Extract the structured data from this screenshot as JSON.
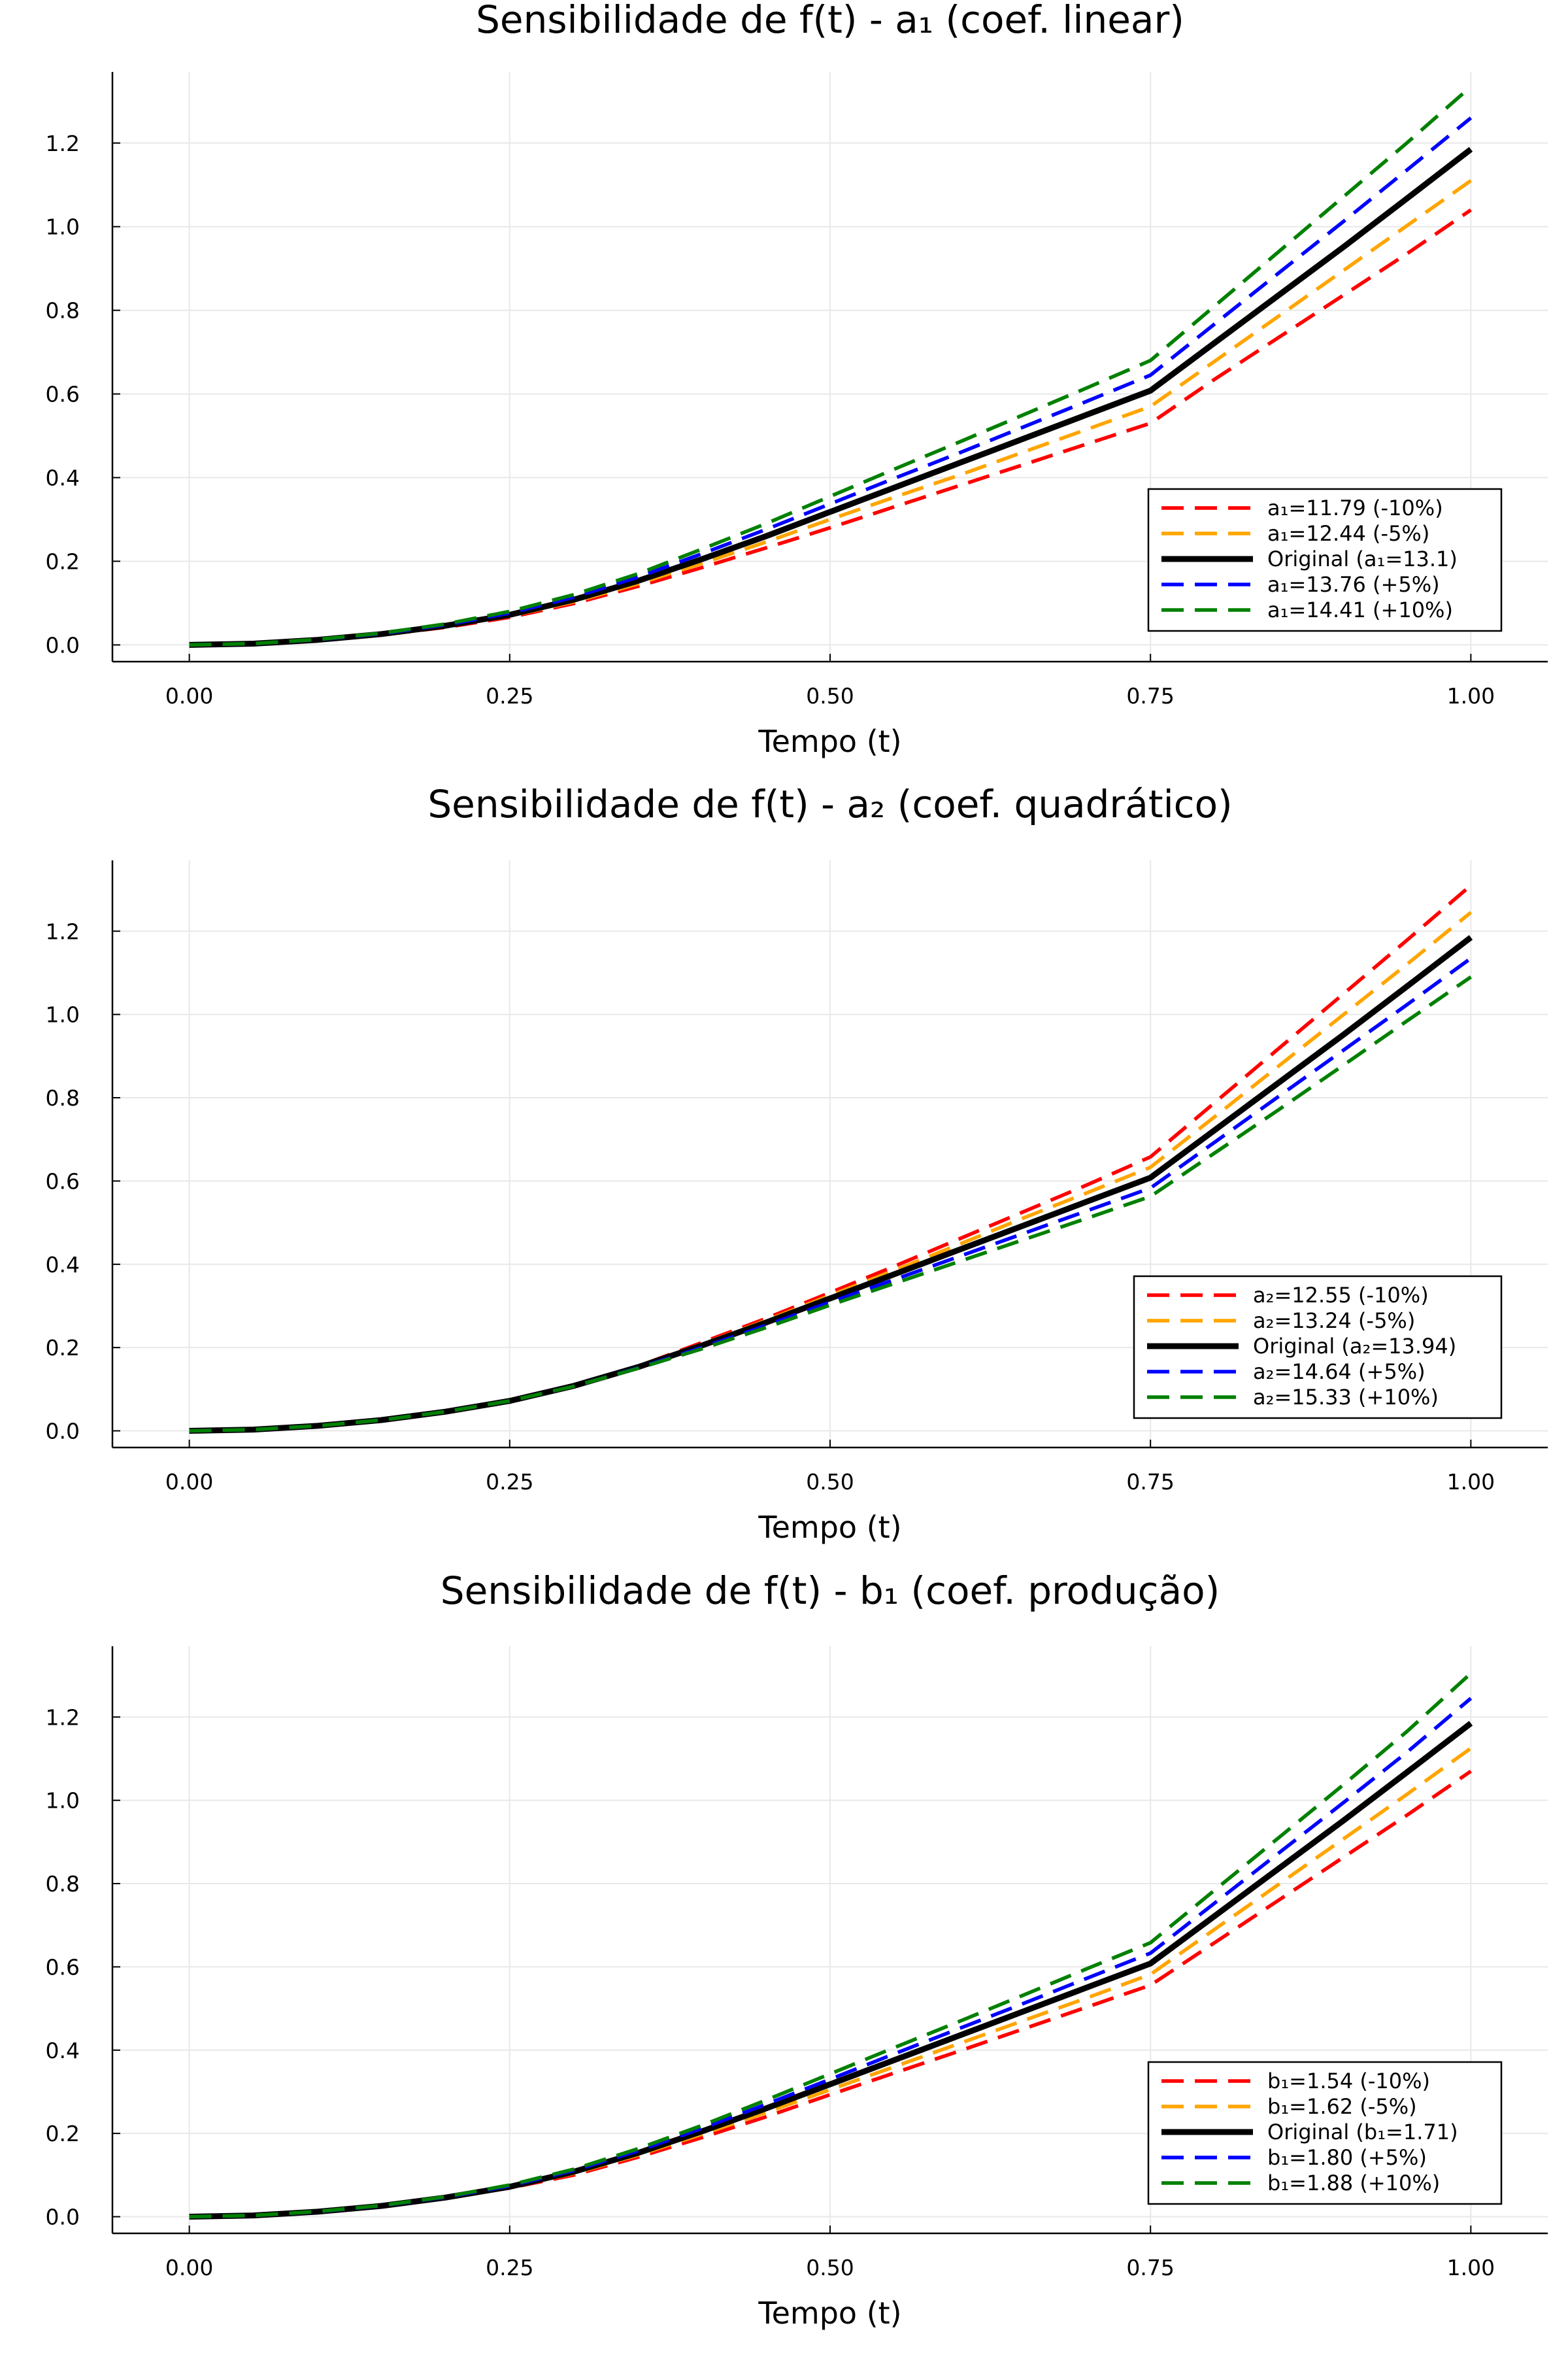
{
  "chart_data": [
    {
      "type": "line",
      "title": "Sensibilidade de f(t) - a₁ (coef. linear)",
      "xlabel": "Tempo (t)",
      "ylabel": "",
      "xlim": [
        -0.06,
        1.06
      ],
      "ylim": [
        -0.04,
        1.37
      ],
      "xticks": [
        "0.00",
        "0.25",
        "0.50",
        "0.75",
        "1.00"
      ],
      "yticks": [
        "0.0",
        "0.2",
        "0.4",
        "0.6",
        "0.8",
        "1.0",
        "1.2"
      ],
      "grid": true,
      "legend_position": "bottom-right",
      "x": [
        0.0,
        0.05,
        0.1,
        0.15,
        0.2,
        0.25,
        0.3,
        0.35,
        0.4,
        0.45,
        0.5,
        0.55,
        0.6,
        0.65,
        0.7,
        0.75,
        0.8,
        0.85,
        0.9,
        0.95,
        1.0
      ],
      "series": [
        {
          "name": "a₁=11.79 (-10%)",
          "color": "#ff0000",
          "dashed": true,
          "values": [
            0.0,
            0.0028,
            0.011,
            0.024,
            0.042,
            0.066,
            0.099,
            0.14,
            0.185,
            0.232,
            0.28,
            0.33,
            0.38,
            0.43,
            0.48,
            0.53,
            0.635,
            0.735,
            0.835,
            0.935,
            1.04
          ]
        },
        {
          "name": "a₁=12.44 (-5%)",
          "color": "#ffa500",
          "dashed": true,
          "values": [
            0.0,
            0.0029,
            0.0115,
            0.025,
            0.044,
            0.069,
            0.103,
            0.146,
            0.195,
            0.246,
            0.3,
            0.353,
            0.405,
            0.46,
            0.515,
            0.57,
            0.678,
            0.786,
            0.894,
            1.002,
            1.11
          ]
        },
        {
          "name": "Original (a₁=13.1)",
          "color": "#000000",
          "dashed": false,
          "values": [
            0.0,
            0.003,
            0.012,
            0.026,
            0.046,
            0.072,
            0.108,
            0.153,
            0.205,
            0.26,
            0.318,
            0.376,
            0.434,
            0.492,
            0.55,
            0.608,
            0.722,
            0.836,
            0.95,
            1.067,
            1.185
          ]
        },
        {
          "name": "a₁=13.76 (+5%)",
          "color": "#0000ff",
          "dashed": true,
          "values": [
            0.0,
            0.0031,
            0.0125,
            0.027,
            0.048,
            0.076,
            0.114,
            0.162,
            0.218,
            0.276,
            0.337,
            0.398,
            0.458,
            0.52,
            0.582,
            0.645,
            0.767,
            0.889,
            1.011,
            1.135,
            1.26
          ]
        },
        {
          "name": "a₁=14.41 (+10%)",
          "color": "#008000",
          "dashed": true,
          "values": [
            0.0,
            0.0032,
            0.013,
            0.028,
            0.05,
            0.08,
            0.12,
            0.17,
            0.229,
            0.29,
            0.355,
            0.42,
            0.484,
            0.549,
            0.614,
            0.68,
            0.81,
            0.94,
            1.07,
            1.2,
            1.335
          ]
        }
      ]
    },
    {
      "type": "line",
      "title": "Sensibilidade de f(t) - a₂ (coef. quadrático)",
      "xlabel": "Tempo (t)",
      "ylabel": "",
      "xlim": [
        -0.06,
        1.06
      ],
      "ylim": [
        -0.04,
        1.37
      ],
      "xticks": [
        "0.00",
        "0.25",
        "0.50",
        "0.75",
        "1.00"
      ],
      "yticks": [
        "0.0",
        "0.2",
        "0.4",
        "0.6",
        "0.8",
        "1.0",
        "1.2"
      ],
      "grid": true,
      "legend_position": "bottom-right",
      "x": [
        0.0,
        0.05,
        0.1,
        0.15,
        0.2,
        0.25,
        0.3,
        0.35,
        0.4,
        0.45,
        0.5,
        0.55,
        0.6,
        0.65,
        0.7,
        0.75,
        0.8,
        0.85,
        0.9,
        0.95,
        1.0
      ],
      "series": [
        {
          "name": "a₂=12.55 (-10%)",
          "color": "#ff0000",
          "dashed": true,
          "values": [
            0.0,
            0.003,
            0.012,
            0.026,
            0.046,
            0.072,
            0.108,
            0.155,
            0.212,
            0.27,
            0.332,
            0.395,
            0.46,
            0.525,
            0.59,
            0.658,
            0.788,
            0.918,
            1.048,
            1.178,
            1.31
          ]
        },
        {
          "name": "a₂=13.24 (-5%)",
          "color": "#ffa500",
          "dashed": true,
          "values": [
            0.0,
            0.003,
            0.012,
            0.026,
            0.046,
            0.072,
            0.108,
            0.154,
            0.208,
            0.265,
            0.325,
            0.385,
            0.447,
            0.51,
            0.571,
            0.633,
            0.754,
            0.876,
            0.998,
            1.12,
            1.245
          ]
        },
        {
          "name": "Original (a₂=13.94)",
          "color": "#000000",
          "dashed": false,
          "values": [
            0.0,
            0.003,
            0.012,
            0.026,
            0.046,
            0.072,
            0.108,
            0.153,
            0.205,
            0.26,
            0.318,
            0.376,
            0.434,
            0.492,
            0.55,
            0.608,
            0.722,
            0.836,
            0.95,
            1.067,
            1.185
          ]
        },
        {
          "name": "a₂=14.64 (+5%)",
          "color": "#0000ff",
          "dashed": true,
          "values": [
            0.0,
            0.003,
            0.012,
            0.026,
            0.046,
            0.072,
            0.107,
            0.151,
            0.2,
            0.253,
            0.309,
            0.363,
            0.418,
            0.473,
            0.528,
            0.583,
            0.693,
            0.803,
            0.913,
            1.023,
            1.135
          ]
        },
        {
          "name": "a₂=15.33 (+10%)",
          "color": "#008000",
          "dashed": true,
          "values": [
            0.0,
            0.003,
            0.012,
            0.026,
            0.046,
            0.072,
            0.107,
            0.15,
            0.197,
            0.248,
            0.302,
            0.354,
            0.406,
            0.458,
            0.51,
            0.563,
            0.667,
            0.771,
            0.877,
            0.984,
            1.09
          ]
        }
      ]
    },
    {
      "type": "line",
      "title": "Sensibilidade de f(t) - b₁ (coef. produção)",
      "xlabel": "Tempo (t)",
      "ylabel": "",
      "xlim": [
        -0.06,
        1.06
      ],
      "ylim": [
        -0.04,
        1.37
      ],
      "xticks": [
        "0.00",
        "0.25",
        "0.50",
        "0.75",
        "1.00"
      ],
      "yticks": [
        "0.0",
        "0.2",
        "0.4",
        "0.6",
        "0.8",
        "1.0",
        "1.2"
      ],
      "grid": true,
      "legend_position": "bottom-right",
      "x": [
        0.0,
        0.05,
        0.1,
        0.15,
        0.2,
        0.25,
        0.3,
        0.35,
        0.4,
        0.45,
        0.5,
        0.55,
        0.6,
        0.65,
        0.7,
        0.75,
        0.8,
        0.85,
        0.9,
        0.95,
        1.0
      ],
      "series": [
        {
          "name": "b₁=1.54 (-10%)",
          "color": "#ff0000",
          "dashed": true,
          "values": [
            0.0,
            0.003,
            0.0115,
            0.025,
            0.045,
            0.069,
            0.1,
            0.143,
            0.19,
            0.24,
            0.293,
            0.345,
            0.397,
            0.45,
            0.503,
            0.556,
            0.658,
            0.76,
            0.862,
            0.964,
            1.07
          ]
        },
        {
          "name": "b₁=1.62 (-5%)",
          "color": "#ffa500",
          "dashed": true,
          "values": [
            0.0,
            0.003,
            0.012,
            0.0255,
            0.0455,
            0.0705,
            0.104,
            0.148,
            0.198,
            0.25,
            0.305,
            0.36,
            0.415,
            0.47,
            0.525,
            0.582,
            0.69,
            0.798,
            0.906,
            1.014,
            1.125
          ]
        },
        {
          "name": "Original (b₁=1.71)",
          "color": "#000000",
          "dashed": false,
          "values": [
            0.0,
            0.003,
            0.012,
            0.026,
            0.046,
            0.072,
            0.108,
            0.153,
            0.205,
            0.26,
            0.318,
            0.376,
            0.434,
            0.492,
            0.55,
            0.608,
            0.722,
            0.836,
            0.95,
            1.067,
            1.185
          ]
        },
        {
          "name": "b₁=1.80 (+5%)",
          "color": "#0000ff",
          "dashed": true,
          "values": [
            0.0,
            0.003,
            0.012,
            0.0265,
            0.047,
            0.074,
            0.111,
            0.158,
            0.212,
            0.27,
            0.33,
            0.391,
            0.451,
            0.511,
            0.572,
            0.633,
            0.753,
            0.873,
            0.993,
            1.115,
            1.245
          ]
        },
        {
          "name": "b₁=1.88 (+10%)",
          "color": "#008000",
          "dashed": true,
          "values": [
            0.0,
            0.003,
            0.0125,
            0.027,
            0.048,
            0.076,
            0.114,
            0.163,
            0.219,
            0.28,
            0.343,
            0.406,
            0.468,
            0.531,
            0.595,
            0.658,
            0.784,
            0.91,
            1.036,
            1.165,
            1.305
          ]
        }
      ]
    }
  ]
}
